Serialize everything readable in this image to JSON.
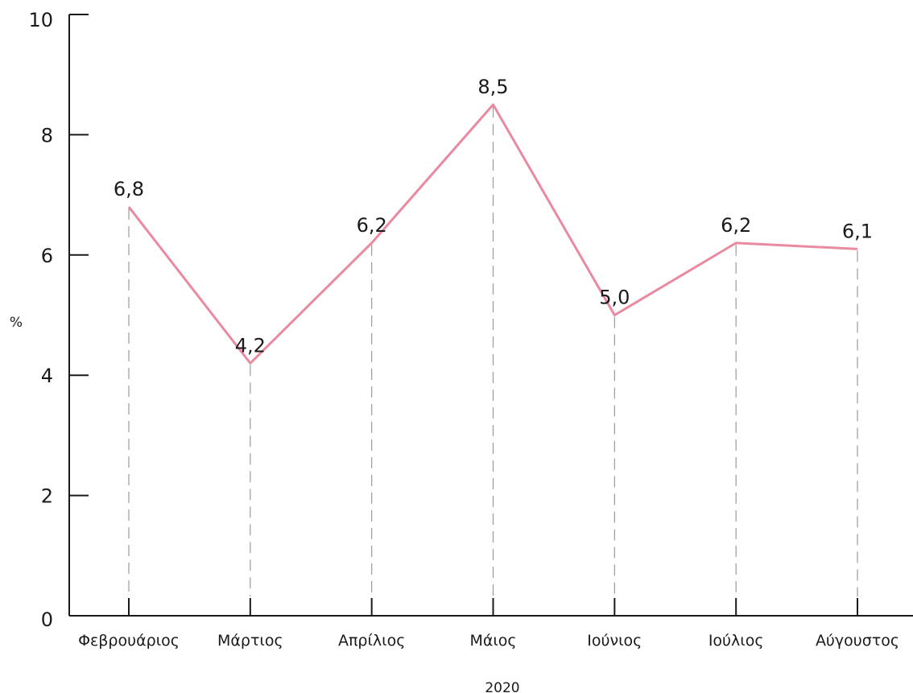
{
  "chart_data": {
    "type": "line",
    "categories": [
      "Φεβρουάριος",
      "Μάρτιος",
      "Απρίλιος",
      "Μάιος",
      "Ιούνιος",
      "Ιούλιος",
      "Αύγουστος"
    ],
    "values": [
      6.8,
      4.2,
      6.2,
      8.5,
      5.0,
      6.2,
      6.1
    ],
    "data_labels": [
      "6,8",
      "4,2",
      "6,2",
      "8,5",
      "5,0",
      "6,2",
      "6,1"
    ],
    "ylabel": "%",
    "xlabel": "2020",
    "ylim": [
      0,
      10
    ],
    "yticks": [
      0,
      2,
      4,
      6,
      8,
      10
    ],
    "grid": false,
    "line_color": "#e98aa0",
    "axis_color": "#1a1a1a",
    "guide_color": "#9a9a9a"
  }
}
